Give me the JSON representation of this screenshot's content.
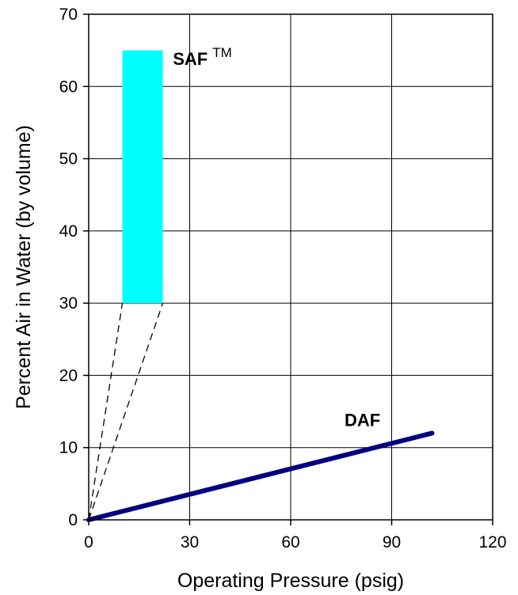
{
  "chart_data": {
    "type": "line",
    "xlabel": "Operating Pressure (psig)",
    "ylabel": "Percent Air in Water (by volume)",
    "xlim": [
      0,
      120
    ],
    "ylim": [
      0,
      70
    ],
    "xticks": [
      0,
      30,
      60,
      90,
      120
    ],
    "xtick_labels": [
      "0",
      "30",
      "60",
      "90",
      "120"
    ],
    "yticks": [
      0,
      10,
      20,
      30,
      40,
      50,
      60,
      70
    ],
    "ytick_labels": [
      "0",
      "10",
      "20",
      "30",
      "40",
      "50",
      "60",
      "70"
    ],
    "grid": true,
    "series": [
      {
        "name": "DAF",
        "kind": "line",
        "color": "#000080",
        "points": [
          [
            0,
            0
          ],
          [
            102,
            12
          ]
        ]
      },
      {
        "name": "SAF",
        "kind": "range",
        "color": "#00FFFF",
        "x_range": [
          10,
          22
        ],
        "y_range": [
          30,
          65
        ]
      }
    ],
    "guide_lines": [
      {
        "style": "dashed",
        "color": "#000000",
        "points": [
          [
            0,
            0
          ],
          [
            10,
            30
          ]
        ]
      },
      {
        "style": "dashed",
        "color": "#000000",
        "points": [
          [
            0,
            0
          ],
          [
            22,
            30
          ]
        ]
      }
    ],
    "annotations": [
      {
        "text": "SAF",
        "superscript": "TM",
        "x": 25,
        "y": 63
      },
      {
        "text": "DAF",
        "x": 76,
        "y": 13
      }
    ]
  }
}
